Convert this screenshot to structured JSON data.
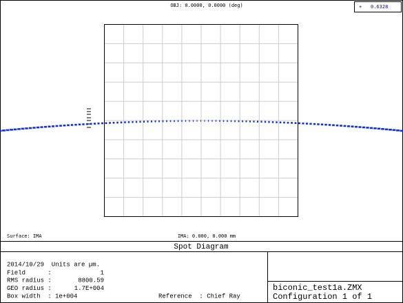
{
  "header": {
    "object_field": "OBJ: 0.0000, 0.0000 (deg)",
    "legend_wavelength": "0.6328"
  },
  "plot": {
    "surface": "Surface: IMA",
    "image_coords": "IMA: 0.000, 0.000 mm"
  },
  "title": "Spot Diagram",
  "info": {
    "date_units": "2014/10/29  Units are µm.",
    "rows": [
      {
        "label": "Field      :",
        "value": "1"
      },
      {
        "label": "RMS radius :",
        "value": "8800.59"
      },
      {
        "label": "GEO radius :",
        "value": "1.7E+004"
      },
      {
        "label": "Box width  :",
        "value": "1e+004"
      }
    ],
    "reference": "Reference  : Chief Ray"
  },
  "file": {
    "name": "biconic_test1a.ZMX",
    "configuration": "Configuration 1 of 1"
  }
}
